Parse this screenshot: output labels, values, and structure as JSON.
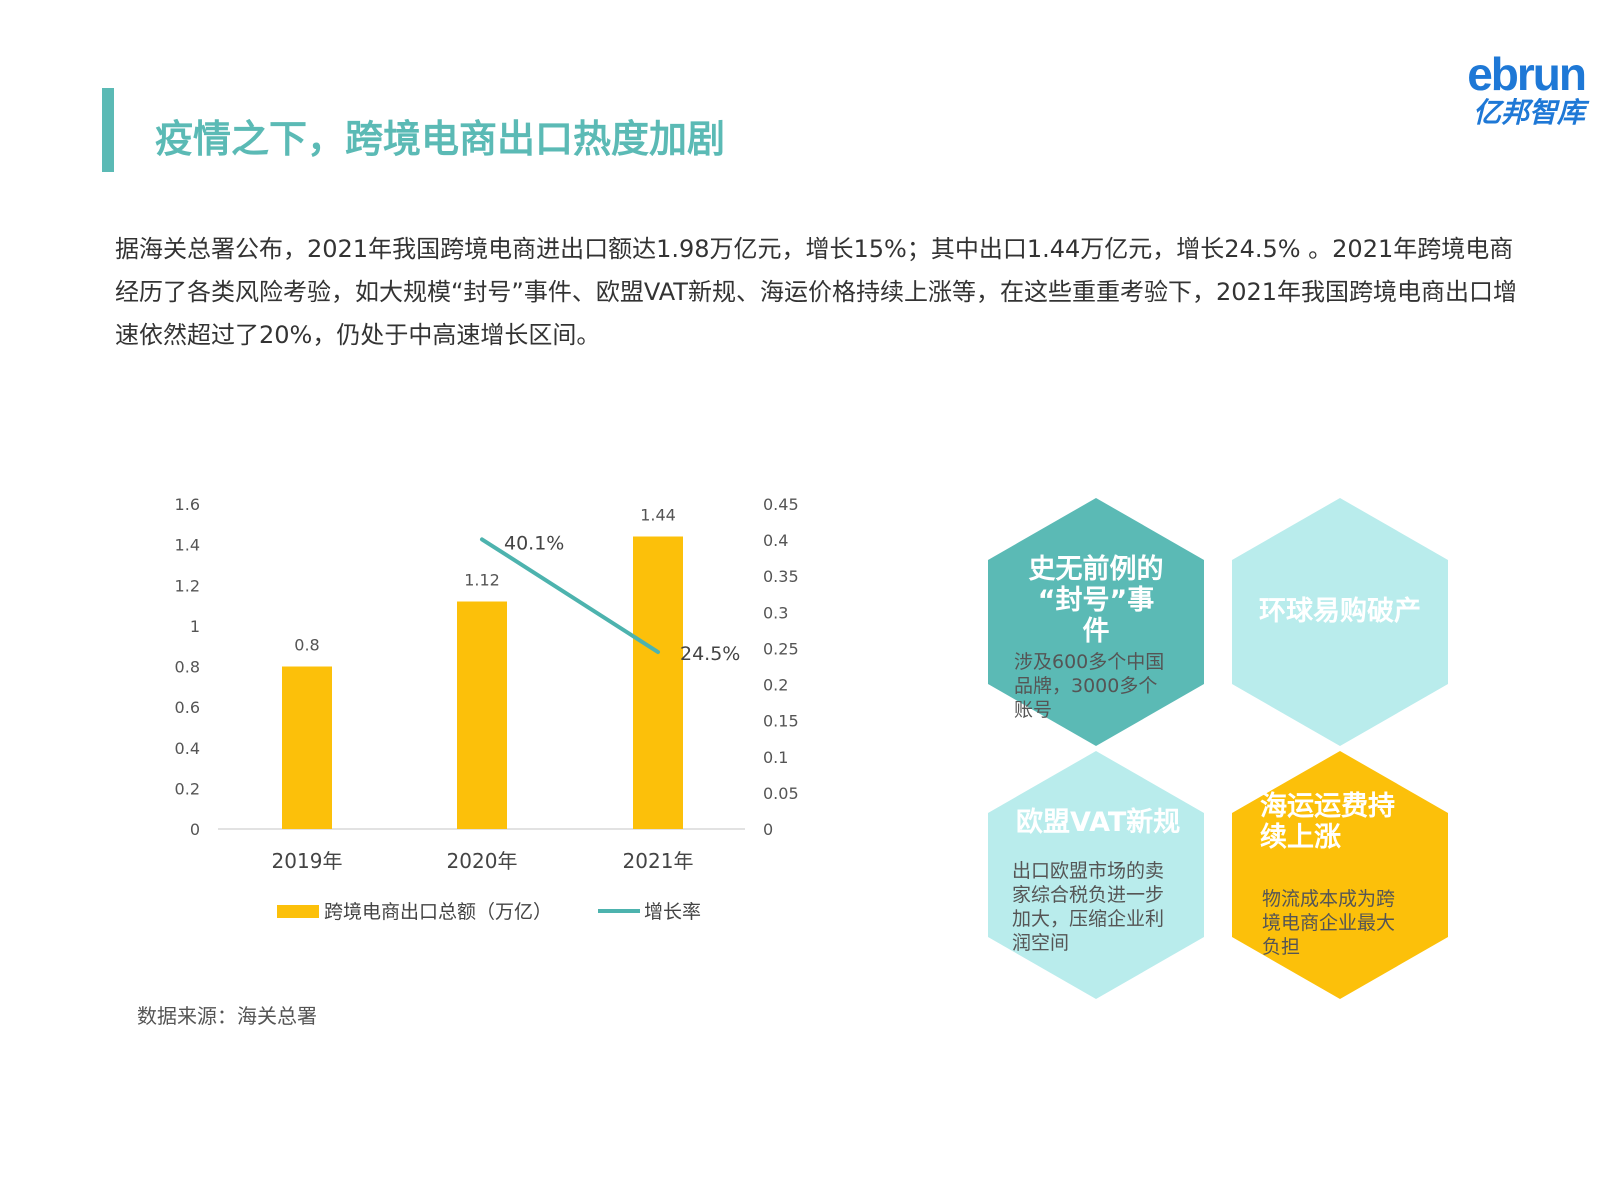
{
  "header": {
    "title": "疫情之下，跨境电商出口热度加剧",
    "logo_en": "ebrun",
    "logo_cn": "亿邦智库"
  },
  "intro_text": "据海关总署公布，2021年我国跨境电商进出口额达1.98万亿元，增长15%；其中出口1.44万亿元，增长24.5% 。2021年跨境电商经历了各类风险考验，如大规模“封号”事件、欧盟VAT新规、海运价格持续上涨等，在这些重重考验下，2021年我国跨境电商出口增速依然超过了20%，仍处于中高速增长区间。",
  "source": "数据来源：海关总署",
  "colors": {
    "accent": "#5bbab5",
    "bar": "#fcc00a",
    "line": "#4db3ae",
    "hex_dark": "#5bbab5",
    "hex_light": "#b9ecec",
    "hex_yellow": "#fcc00a"
  },
  "chart_data": {
    "type": "bar",
    "categories": [
      "2019年",
      "2020年",
      "2021年"
    ],
    "series": [
      {
        "name": "跨境电商出口总额（万亿）",
        "type": "bar",
        "axis": "left",
        "values": [
          0.8,
          1.12,
          1.44
        ],
        "labels": [
          "0.8",
          "1.12",
          "1.44"
        ]
      },
      {
        "name": "增长率",
        "type": "line",
        "axis": "right",
        "values": [
          null,
          0.401,
          0.245
        ],
        "labels": [
          "",
          "40.1%",
          "24.5%"
        ]
      }
    ],
    "y_left": {
      "ylim": [
        0,
        1.6
      ],
      "ticks": [
        "0",
        "0.2",
        "0.4",
        "0.6",
        "0.8",
        "1",
        "1.2",
        "1.4",
        "1.6"
      ]
    },
    "y_right": {
      "ylim": [
        0,
        0.45
      ],
      "ticks": [
        "0",
        "0.05",
        "0.1",
        "0.15",
        "0.2",
        "0.25",
        "0.3",
        "0.35",
        "0.4",
        "0.45"
      ]
    },
    "grid": false,
    "legend_position": "bottom"
  },
  "hexagons": [
    {
      "title_lines": [
        "史无前例的",
        "“封号”事",
        "件"
      ],
      "body_lines": [
        "涉及600多个中国",
        "品牌，3000多个",
        "账号"
      ],
      "color": "dark"
    },
    {
      "title_lines": [
        "环球易购破产"
      ],
      "body_lines": [],
      "color": "light"
    },
    {
      "title_lines": [
        "欧盟VAT新规"
      ],
      "body_lines": [
        "出口欧盟市场的卖",
        "家综合税负进一步",
        "加大，压缩企业利",
        "润空间"
      ],
      "color": "light"
    },
    {
      "title_lines": [
        "海运运费持",
        "续上涨"
      ],
      "body_lines": [
        "物流成本成为跨",
        "境电商企业最大",
        "负担"
      ],
      "color": "yellow"
    }
  ]
}
